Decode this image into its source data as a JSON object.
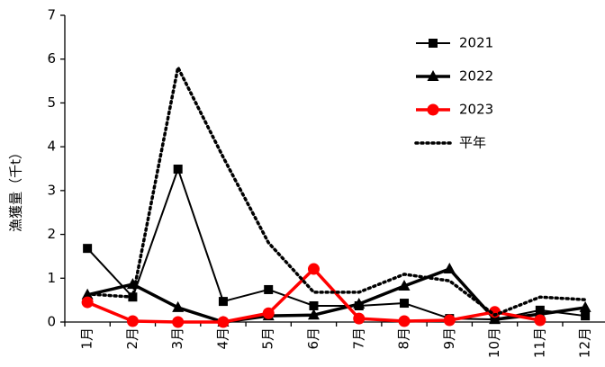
{
  "chart_data": {
    "type": "line",
    "y_label": "漁獲量（千t）",
    "categories": [
      "1月",
      "2月",
      "3月",
      "4月",
      "5月",
      "6月",
      "7月",
      "8月",
      "9月",
      "10月",
      "11月",
      "12月"
    ],
    "series": [
      {
        "name": "2021",
        "color": "#000000",
        "marker": "square",
        "values": [
          1.68,
          0.57,
          3.49,
          0.47,
          0.74,
          0.37,
          0.37,
          0.43,
          0.08,
          0.06,
          0.27,
          0.14
        ]
      },
      {
        "name": "2022",
        "color": "#000000",
        "marker": "triangle",
        "values": [
          0.62,
          0.86,
          0.33,
          0.0,
          0.14,
          0.16,
          0.41,
          0.82,
          1.21,
          0.06,
          0.18,
          0.33
        ]
      },
      {
        "name": "2023",
        "color": "#ff0000",
        "marker": "circle",
        "values": [
          0.45,
          0.02,
          0.0,
          0.0,
          0.2,
          1.21,
          0.08,
          0.02,
          0.04,
          0.23,
          0.04,
          null
        ]
      },
      {
        "name": "平年",
        "color": "#000000",
        "marker": "dotted",
        "values": [
          0.64,
          0.57,
          5.81,
          3.76,
          1.81,
          0.68,
          0.68,
          1.09,
          0.94,
          0.16,
          0.57,
          0.51
        ]
      }
    ],
    "ylim": [
      0,
      7
    ],
    "yticks": [
      0,
      1,
      2,
      3,
      4,
      5,
      6,
      7
    ],
    "legend": "top-right"
  }
}
